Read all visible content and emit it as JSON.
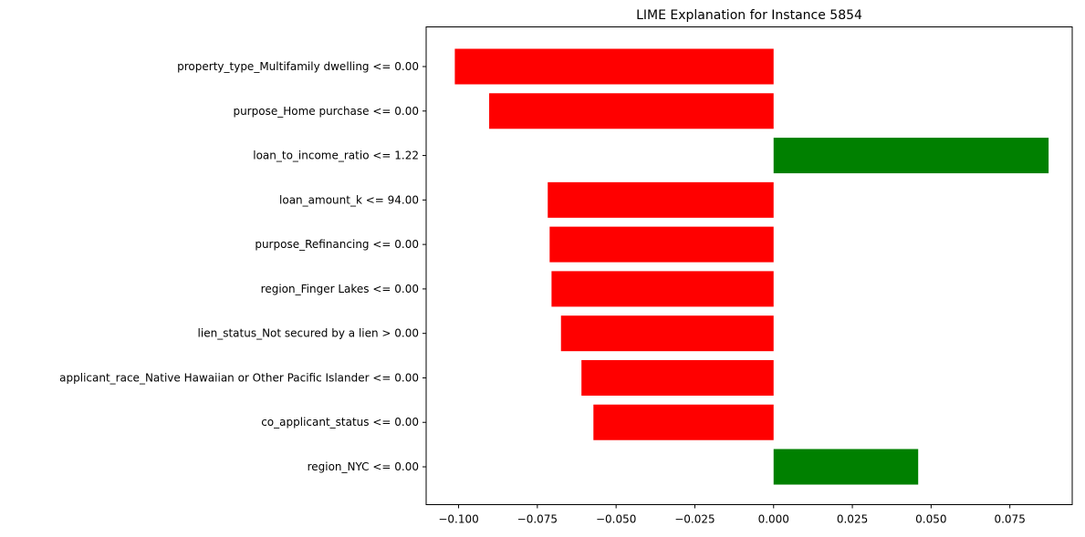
{
  "chart_data": {
    "type": "bar",
    "orientation": "horizontal",
    "title": "LIME Explanation for Instance 5854",
    "xlabel": "",
    "ylabel": "",
    "categories": [
      "property_type_Multifamily dwelling <= 0.00",
      "purpose_Home purchase <= 0.00",
      "loan_to_income_ratio <= 1.22",
      "loan_amount_k <= 94.00",
      "purpose_Refinancing <= 0.00",
      "region_Finger Lakes <= 0.00",
      "lien_status_Not secured by a lien > 0.00",
      "applicant_race_Native Hawaiian or Other Pacific Islander <= 0.00",
      "co_applicant_status <= 0.00",
      "region_NYC <= 0.00"
    ],
    "values": [
      -0.1012,
      -0.0903,
      0.0873,
      -0.0717,
      -0.0711,
      -0.0705,
      -0.0675,
      -0.061,
      -0.0572,
      0.0459
    ],
    "xlim": [
      -0.1103,
      0.0948
    ],
    "xticks": [
      -0.1,
      -0.075,
      -0.05,
      -0.025,
      0.0,
      0.025,
      0.05,
      0.075
    ],
    "xtick_labels": [
      "−0.100",
      "−0.075",
      "−0.050",
      "−0.025",
      "0.000",
      "0.025",
      "0.050",
      "0.075"
    ],
    "grid": false,
    "legend": "none",
    "colors": {
      "positive": "#008000",
      "negative": "#ff0000"
    }
  }
}
